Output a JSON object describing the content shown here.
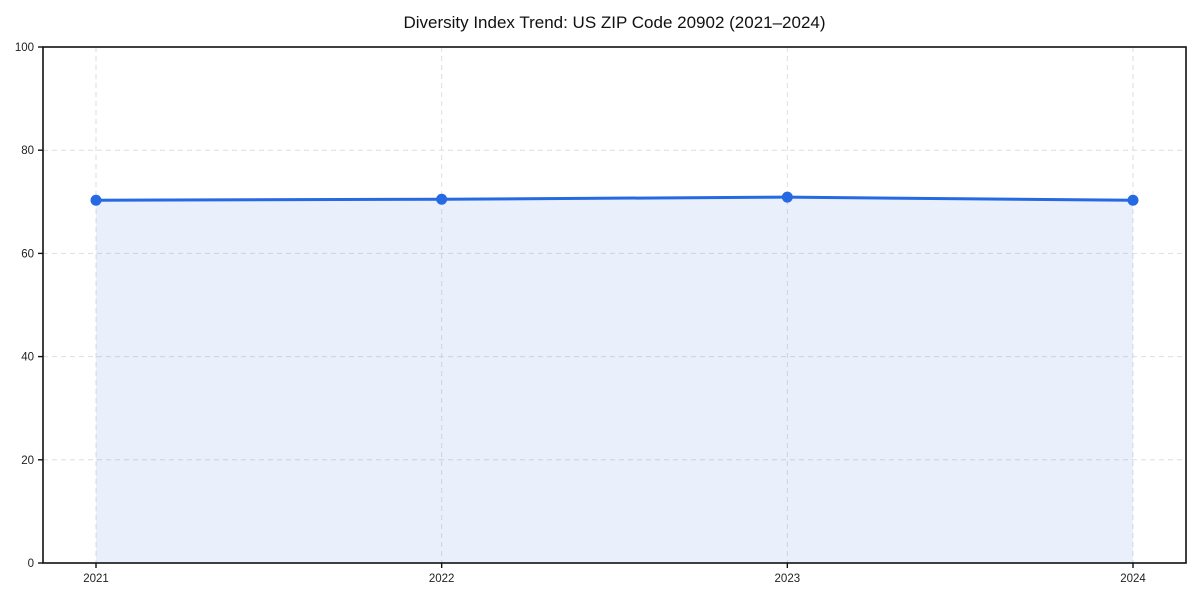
{
  "chart_data": {
    "type": "area",
    "title": "Diversity Index Trend: US ZIP Code 20902 (2021–2024)",
    "categories": [
      "2021",
      "2022",
      "2023",
      "2024"
    ],
    "series": [
      {
        "name": "Diversity Index",
        "values": [
          70.3,
          70.5,
          70.9,
          70.3
        ]
      }
    ],
    "xlabel": "",
    "ylabel": "",
    "ylim": [
      0,
      100
    ],
    "y_ticks": [
      0,
      20,
      40,
      60,
      80,
      100
    ],
    "grid": true,
    "grid_style": "dashed",
    "legend": "none",
    "marker": "circle",
    "colors": {
      "line": "#2569e3",
      "marker": "#2569e3",
      "fill": "#2569e3",
      "fill_opacity": 0.1,
      "grid": "#dedede",
      "spine": "#111111",
      "tick_label": "#222222",
      "title": "#111111",
      "background": "#ffffff"
    }
  }
}
